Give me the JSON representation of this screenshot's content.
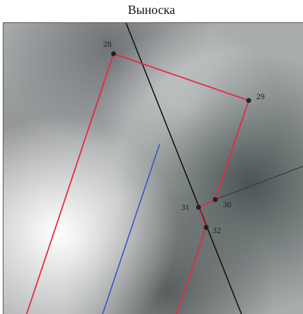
{
  "title": "Выноска",
  "points": [
    {
      "id": "28",
      "label": "28"
    },
    {
      "id": "29",
      "label": "29"
    },
    {
      "id": "30",
      "label": "30"
    },
    {
      "id": "31",
      "label": "31"
    },
    {
      "id": "32",
      "label": "32"
    }
  ],
  "colors": {
    "boundary": "#e8283c",
    "black_line": "#111111",
    "blue_line": "#3a52c8",
    "leader_line": "#333a3a",
    "point": "#222222"
  }
}
